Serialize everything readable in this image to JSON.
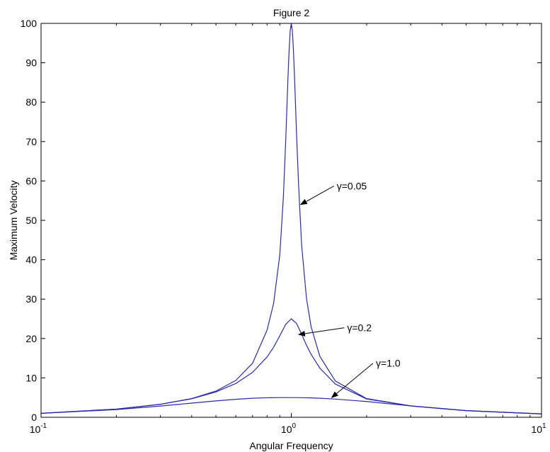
{
  "chart_data": {
    "type": "line",
    "title": "Figure 2",
    "xlabel": "Angular Frequency",
    "ylabel": "Maximum Velocity",
    "x_scale": "log",
    "xlim": [
      0.1,
      10
    ],
    "ylim": [
      0,
      100
    ],
    "grid": false,
    "x_ticks": [
      {
        "value": 0.1,
        "base": "10",
        "exp": "-1"
      },
      {
        "value": 1,
        "base": "10",
        "exp": "0"
      },
      {
        "value": 10,
        "base": "10",
        "exp": "1"
      }
    ],
    "y_ticks": [
      0,
      10,
      20,
      30,
      40,
      50,
      60,
      70,
      80,
      90,
      100
    ],
    "line_color": "#2a2aa8",
    "series": [
      {
        "gamma": 0.05,
        "label": "γ=0.05",
        "x": [
          0.1,
          0.2,
          0.3,
          0.4,
          0.5,
          0.6,
          0.7,
          0.8,
          0.85,
          0.9,
          0.93,
          0.95,
          0.97,
          0.98,
          0.99,
          1.0,
          1.01,
          1.02,
          1.03,
          1.05,
          1.07,
          1.1,
          1.15,
          1.2,
          1.3,
          1.5,
          2,
          3,
          5,
          10
        ],
        "y": [
          1.01,
          2.08,
          3.3,
          4.75,
          6.66,
          9.35,
          13.7,
          22.1,
          28.9,
          41.3,
          56.0,
          70.2,
          86.2,
          93.0,
          98.1,
          100.0,
          98.1,
          93.2,
          86.7,
          71.7,
          58.8,
          43.7,
          30.2,
          23.0,
          15.5,
          9.21,
          4.74,
          2.9,
          1.69,
          0.86
        ]
      },
      {
        "gamma": 0.2,
        "label": "γ=0.2",
        "x": [
          0.1,
          0.2,
          0.3,
          0.4,
          0.5,
          0.6,
          0.7,
          0.8,
          0.85,
          0.9,
          0.95,
          1.0,
          1.05,
          1.1,
          1.15,
          1.2,
          1.3,
          1.5,
          2,
          3,
          5,
          10
        ],
        "y": [
          1.01,
          2.08,
          3.29,
          4.7,
          6.44,
          8.57,
          11.4,
          15.3,
          17.8,
          20.7,
          23.6,
          25.0,
          23.8,
          21.1,
          18.3,
          16.0,
          12.5,
          8.44,
          4.64,
          2.87,
          1.68,
          0.86
        ]
      },
      {
        "gamma": 1.0,
        "label": "γ=1.0",
        "x": [
          0.1,
          0.2,
          0.3,
          0.4,
          0.5,
          0.6,
          0.7,
          0.8,
          0.9,
          1.0,
          1.1,
          1.2,
          1.3,
          1.5,
          2,
          3,
          5,
          10
        ],
        "y": [
          1.0,
          1.96,
          2.85,
          3.6,
          4.16,
          4.57,
          4.83,
          4.96,
          5.0,
          5.0,
          4.98,
          4.92,
          4.84,
          4.62,
          4.0,
          2.89,
          1.68,
          0.86
        ]
      }
    ],
    "annotations": [
      {
        "text": "γ=0.05",
        "series": 0,
        "target": {
          "x": 1.09,
          "y": 54
        },
        "text_at": {
          "x": 1.5,
          "y": 58
        }
      },
      {
        "text": "γ=0.2",
        "series": 1,
        "target": {
          "x": 1.07,
          "y": 21
        },
        "text_at": {
          "x": 1.65,
          "y": 22
        }
      },
      {
        "text": "γ=1.0",
        "series": 2,
        "target": {
          "x": 1.45,
          "y": 5
        },
        "text_at": {
          "x": 2.15,
          "y": 13
        }
      }
    ]
  }
}
